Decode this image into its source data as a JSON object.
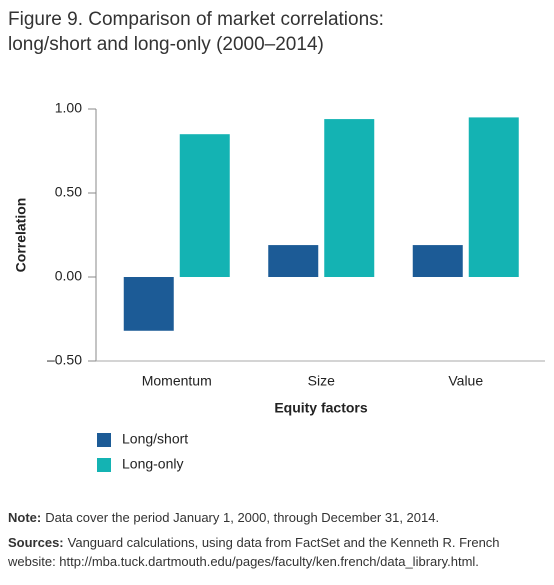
{
  "chart_data": {
    "type": "bar",
    "title": [
      "Figure 9. Comparison of market correlations:",
      "long/short and long-only (2000–2014)"
    ],
    "y_label": "Correlation",
    "x_label": "Equity factors",
    "categories": [
      "Momentum",
      "Size",
      "Value"
    ],
    "series": [
      {
        "name": "Long/short",
        "color": "#1c5b96",
        "values": [
          -0.32,
          0.19,
          0.19
        ]
      },
      {
        "name": "Long-only",
        "color": "#14b3b3",
        "values": [
          0.85,
          0.94,
          0.95
        ]
      }
    ],
    "ylim": [
      -0.5,
      1
    ],
    "yticks": [
      {
        "value": -0.5,
        "label": "–0.50"
      },
      {
        "value": 0,
        "label": "0.00"
      },
      {
        "value": 0.5,
        "label": "0.50"
      },
      {
        "value": 1,
        "label": "1.00"
      }
    ],
    "notes": [
      {
        "label": "Note:",
        "text": "Data cover the period January 1, 2000, through December 31, 2014."
      },
      {
        "label": "Sources:",
        "text": "Vanguard calculations, using data from FactSet and the Kenneth R. French website: http://mba.tuck.dartmouth.edu/pages/faculty/ken.french/data_library.html."
      }
    ]
  }
}
